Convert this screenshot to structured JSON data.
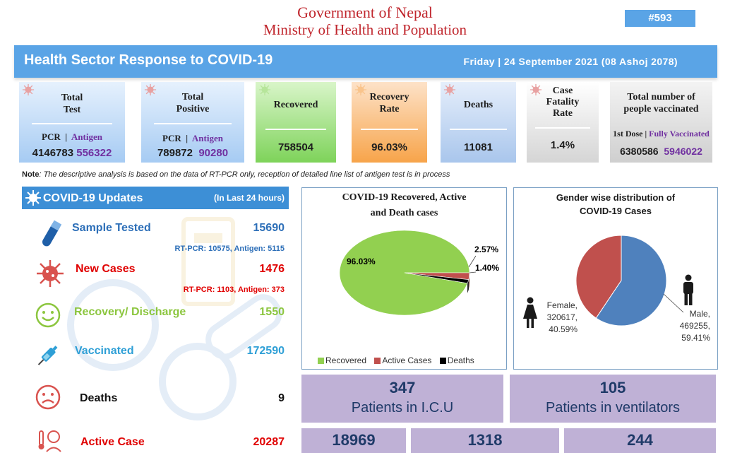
{
  "header": {
    "gov_line1": "Government of Nepal",
    "gov_line2": "Ministry of Health and Population",
    "badge": "#593",
    "banner_title": "Health Sector Response to COVID-19",
    "banner_date": "Friday   |   24  September 2021 (08 Ashoj 2078)"
  },
  "cards": {
    "total_test": {
      "title_1": "Total",
      "title_2": "Test",
      "pcr_label": "PCR",
      "sep": "|",
      "antigen_label": "Antigen",
      "pcr_value": "4146783",
      "antigen_value": "556322"
    },
    "total_positive": {
      "title_1": "Total",
      "title_2": "Positive",
      "pcr_label": "PCR",
      "sep": "|",
      "antigen_label": "Antigen",
      "pcr_value": "789872",
      "antigen_value": "90280"
    },
    "recovered": {
      "title": "Recovered",
      "value": "758504"
    },
    "recovery_rate": {
      "title_1": "Recovery",
      "title_2": "Rate",
      "value": "96.03%"
    },
    "deaths": {
      "title": "Deaths",
      "value": "11081"
    },
    "cfr": {
      "title_1": "Case",
      "title_2": "Fatality",
      "title_3": "Rate",
      "value": "1.4%"
    },
    "vaccinated": {
      "title_1": "Total number of",
      "title_2": "people vaccinated",
      "first_dose": "1st Dose",
      "sep": "|",
      "full_label": "Fully Vaccinated",
      "first_value": "6380586",
      "full_value": "5946022"
    }
  },
  "note": {
    "bold": "Note",
    "text": ": The descriptive analysis is based on the data of RT-PCR only, reception of detailed line list of antigen test is in process"
  },
  "updates": {
    "title": "COVID-19 Updates",
    "subtitle": "(In Last 24 hours)",
    "sample_label": "Sample Tested",
    "sample_value": "15690",
    "sample_sub": "RT-PCR: 10575, Antigen: 5115",
    "new_label": "New Cases",
    "new_value": "1476",
    "new_sub": "RT-PCR: 1103, Antigen: 373",
    "recovery_label": "Recovery/ Discharge",
    "recovery_value": "1550",
    "vaccinated_label": "Vaccinated",
    "vaccinated_value": "172590",
    "deaths_label": "Deaths",
    "deaths_value": "9",
    "active_label": "Active Case",
    "active_value": "20287"
  },
  "pie1": {
    "title_1": "COVID-19 Recovered, Active",
    "title_2": "and Death cases",
    "label_recovered": "96.03%",
    "label_active": "2.57%",
    "label_deaths": "1.40%",
    "legend_recovered": "Recovered",
    "legend_active": "Active Cases",
    "legend_deaths": "Deaths",
    "colors": {
      "recovered": "#92d050",
      "active": "#c0504d",
      "deaths": "#000000"
    }
  },
  "pie2": {
    "title_1": "Gender wise distribution of",
    "title_2": "COVID-19 Cases",
    "female_1": "Female,",
    "female_2": "320617,",
    "female_3": "40.59%",
    "male_1": "Male,",
    "male_2": "469255,",
    "male_3": "59.41%",
    "colors": {
      "male": "#4f81bd",
      "female": "#c0504d"
    }
  },
  "chart_data": [
    {
      "type": "pie",
      "title": "COVID-19 Recovered, Active and Death cases",
      "categories": [
        "Recovered",
        "Active Cases",
        "Deaths"
      ],
      "values": [
        96.03,
        2.57,
        1.4
      ],
      "legend": "bottom"
    },
    {
      "type": "pie",
      "title": "Gender wise distribution of COVID-19 Cases",
      "categories": [
        "Female",
        "Male"
      ],
      "values": [
        320617,
        469255
      ],
      "percent": [
        40.59,
        59.41
      ]
    }
  ],
  "icu": {
    "icu_value": "347",
    "icu_label": "Patients in I.C.U",
    "vent_value": "105",
    "vent_label": "Patients in ventilators",
    "b1": "18969",
    "b2": "1318",
    "b3": "244"
  }
}
